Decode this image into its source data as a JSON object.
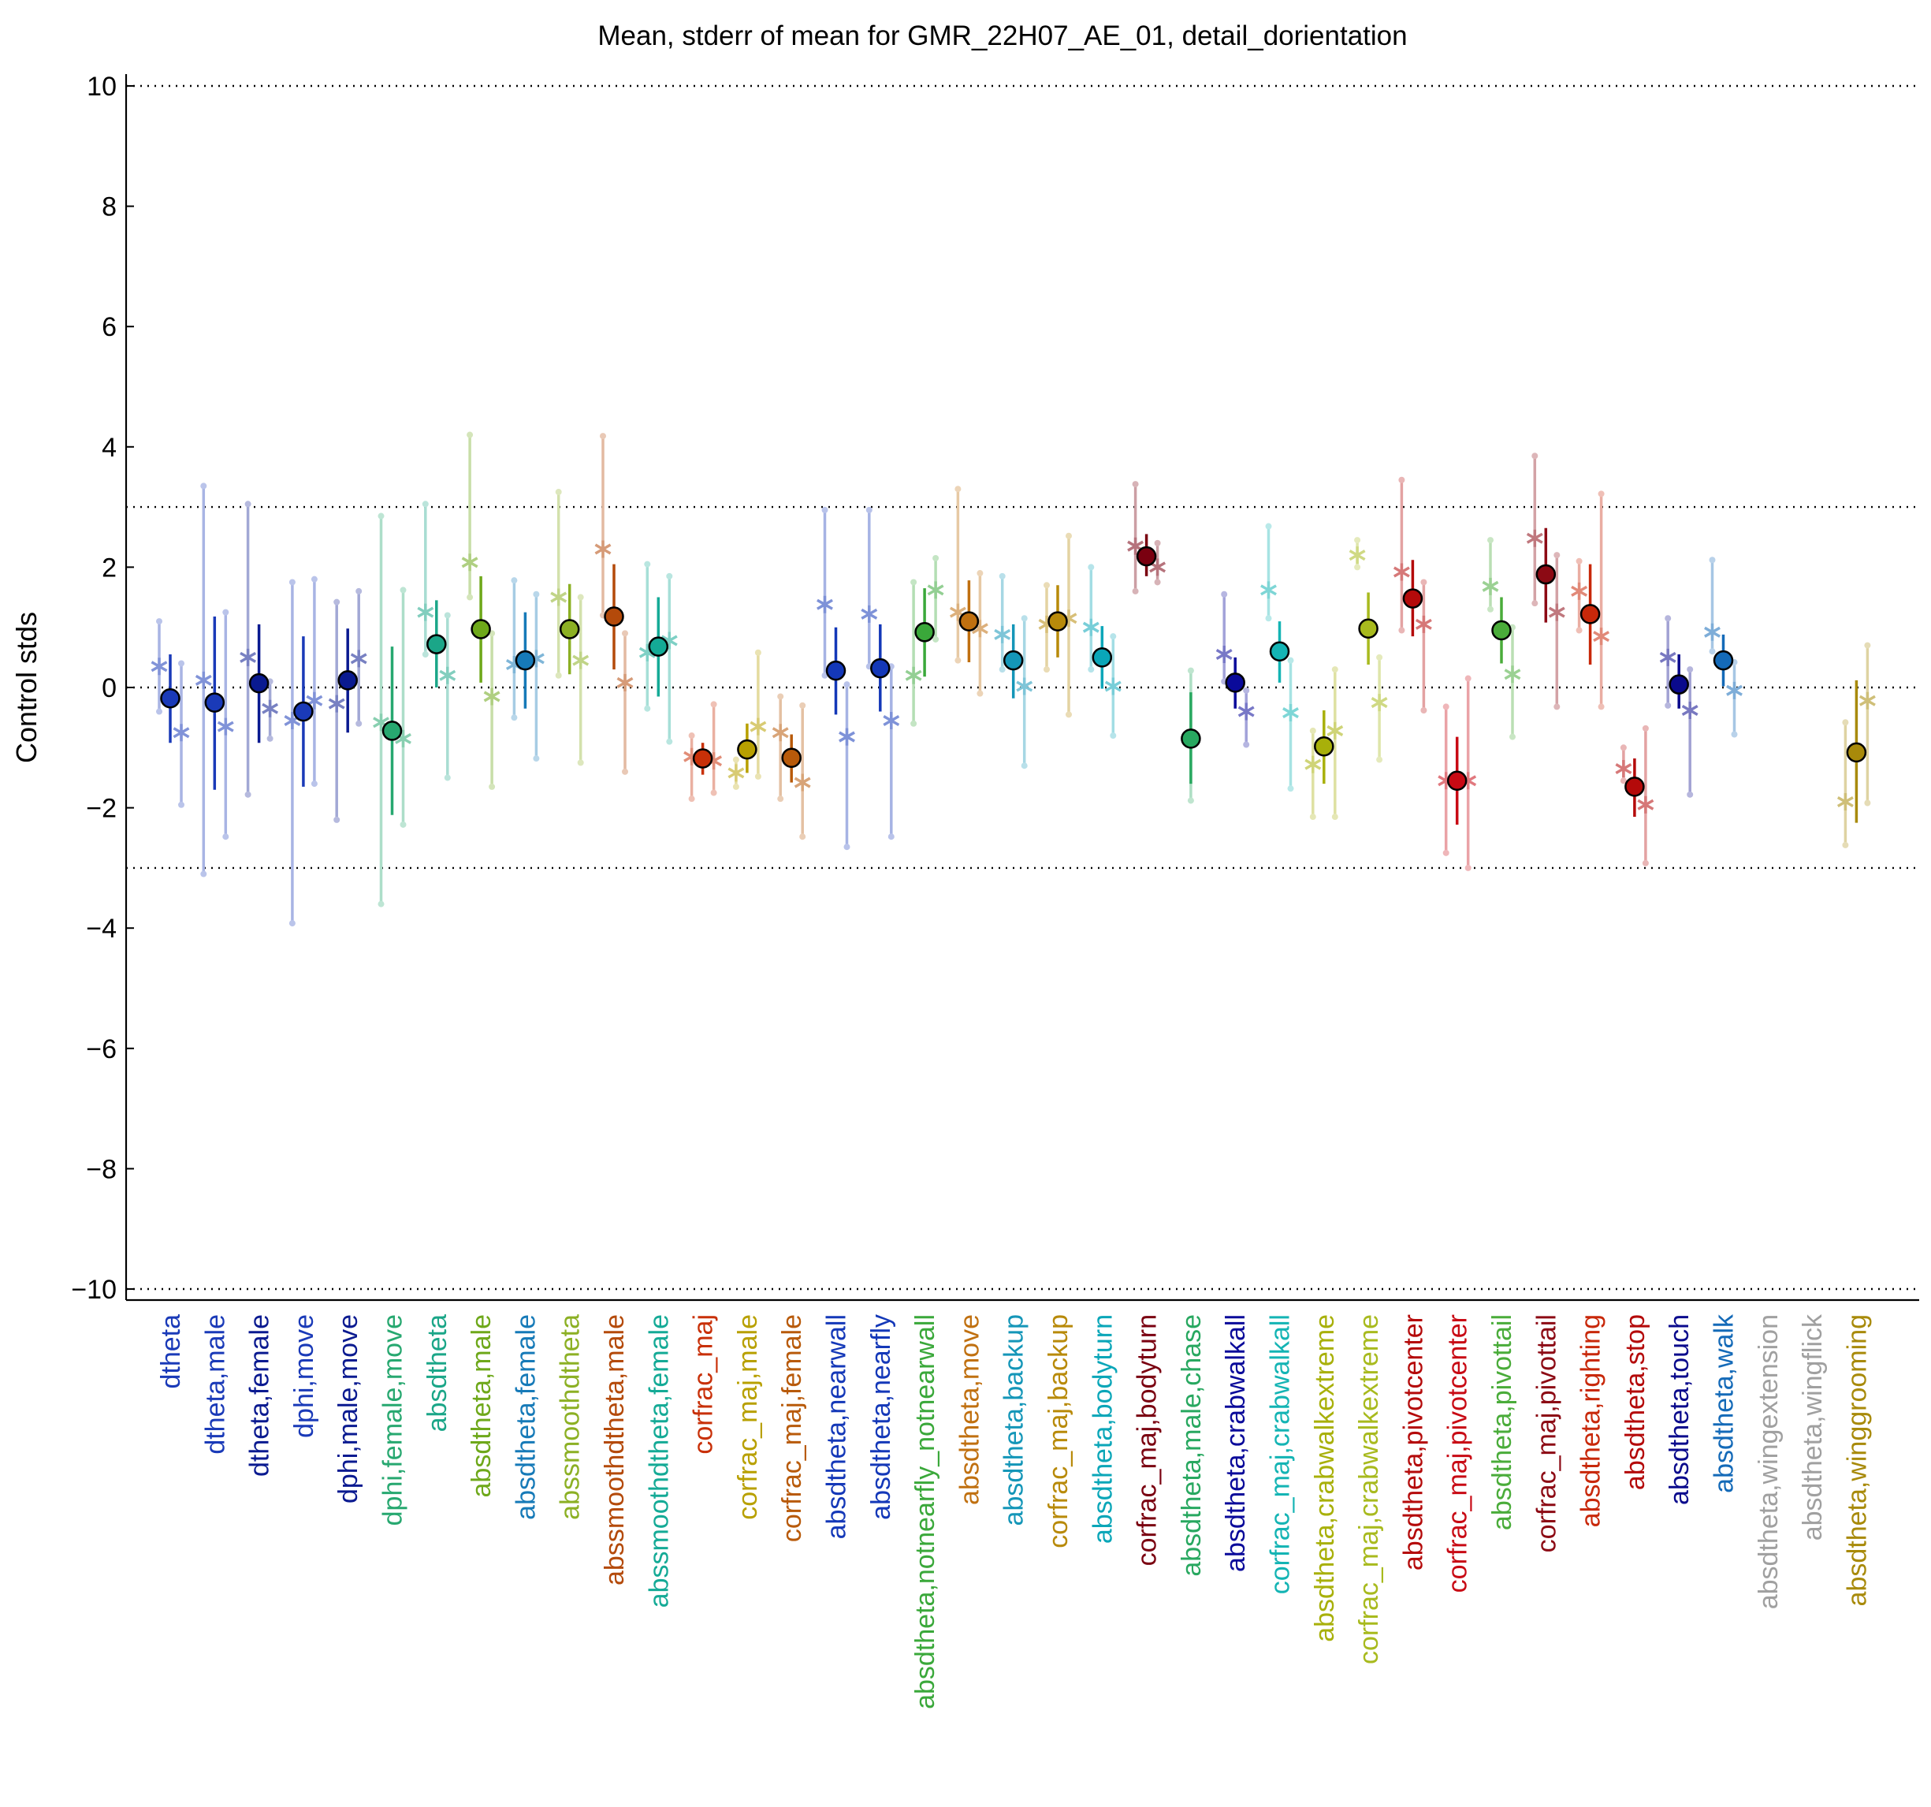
{
  "chart_data": {
    "type": "scatter",
    "title": "Mean, stderr of mean for GMR_22H07_AE_01, detail_dorientation",
    "xlabel": "",
    "ylabel": "Control stds",
    "ylim": [
      -10.2,
      10.2
    ],
    "yticks": [
      {
        "value": 10,
        "label": "10"
      },
      {
        "value": 8,
        "label": "8"
      },
      {
        "value": 6,
        "label": "6"
      },
      {
        "value": 4,
        "label": "4"
      },
      {
        "value": 2,
        "label": "2"
      },
      {
        "value": 0,
        "label": "0"
      },
      {
        "value": -2,
        "label": "−2"
      },
      {
        "value": -4,
        "label": "−4"
      },
      {
        "value": -6,
        "label": "−6"
      },
      {
        "value": -8,
        "label": "−8"
      },
      {
        "value": -10,
        "label": "−10"
      }
    ],
    "reference_lines": [
      10,
      3,
      0,
      -3,
      -10
    ],
    "grid": false,
    "legend": "none",
    "marker_legend": "filled circle = mean with stderr bar; stars = per-experiment values with faint range bars",
    "categories": [
      {
        "label": "dtheta",
        "color": "#1a3ab8",
        "mean": -0.18,
        "lo": -0.92,
        "hi": 0.55,
        "l": 0.35,
        "llo": -0.4,
        "lhi": 1.1,
        "r": -0.75,
        "rlo": -1.95,
        "rhi": 0.4
      },
      {
        "label": "dtheta,male",
        "color": "#1a3ab8",
        "mean": -0.25,
        "lo": -1.7,
        "hi": 1.18,
        "l": 0.12,
        "llo": -3.1,
        "lhi": 3.35,
        "r": -0.65,
        "rlo": -2.48,
        "rhi": 1.25
      },
      {
        "label": "dtheta,female",
        "color": "#0a1a90",
        "mean": 0.07,
        "lo": -0.92,
        "hi": 1.05,
        "l": 0.5,
        "llo": -1.78,
        "lhi": 3.05,
        "r": -0.35,
        "rlo": -0.85,
        "rhi": 0.1
      },
      {
        "label": "dphi,move",
        "color": "#1a3ab8",
        "mean": -0.4,
        "lo": -1.65,
        "hi": 0.85,
        "l": -0.55,
        "llo": -3.92,
        "lhi": 1.75,
        "r": -0.22,
        "rlo": -1.6,
        "rhi": 1.8
      },
      {
        "label": "dphi,male,move",
        "color": "#0a1a90",
        "mean": 0.12,
        "lo": -0.75,
        "hi": 0.98,
        "l": -0.27,
        "llo": -2.2,
        "lhi": 1.42,
        "r": 0.48,
        "rlo": -0.6,
        "rhi": 1.6
      },
      {
        "label": "dphi,female,move",
        "color": "#27a870",
        "mean": -0.72,
        "lo": -2.12,
        "hi": 0.68,
        "l": -0.58,
        "llo": -3.6,
        "lhi": 2.85,
        "r": -0.85,
        "rlo": -2.28,
        "rhi": 1.62
      },
      {
        "label": "absdtheta",
        "color": "#1ba688",
        "mean": 0.72,
        "lo": 0.0,
        "hi": 1.45,
        "l": 1.25,
        "llo": 0.55,
        "lhi": 3.05,
        "r": 0.2,
        "rlo": -1.5,
        "rhi": 1.2
      },
      {
        "label": "absdtheta,male",
        "color": "#6ea81a",
        "mean": 0.97,
        "lo": 0.08,
        "hi": 1.85,
        "l": 2.08,
        "llo": 1.5,
        "lhi": 4.2,
        "r": -0.15,
        "rlo": -1.65,
        "rhi": 0.9
      },
      {
        "label": "absdtheta,female",
        "color": "#167ab8",
        "mean": 0.45,
        "lo": -0.35,
        "hi": 1.25,
        "l": 0.38,
        "llo": -0.5,
        "lhi": 1.78,
        "r": 0.48,
        "rlo": -1.18,
        "rhi": 1.55
      },
      {
        "label": "abssmoothdtheta",
        "color": "#8cb024",
        "mean": 0.97,
        "lo": 0.22,
        "hi": 1.72,
        "l": 1.5,
        "llo": 0.2,
        "lhi": 3.25,
        "r": 0.45,
        "rlo": -1.25,
        "rhi": 1.5
      },
      {
        "label": "abssmoothdtheta,male",
        "color": "#b44a0a",
        "mean": 1.18,
        "lo": 0.3,
        "hi": 2.05,
        "l": 2.3,
        "llo": 1.2,
        "lhi": 4.18,
        "r": 0.08,
        "rlo": -1.4,
        "rhi": 0.9
      },
      {
        "label": "abssmoothdtheta,female",
        "color": "#14aa96",
        "mean": 0.68,
        "lo": -0.15,
        "hi": 1.5,
        "l": 0.58,
        "llo": -0.35,
        "lhi": 2.05,
        "r": 0.78,
        "rlo": -0.9,
        "rhi": 1.85
      },
      {
        "label": "corfrac_maj",
        "color": "#c83008",
        "mean": -1.18,
        "lo": -1.45,
        "hi": -0.92,
        "l": -1.15,
        "llo": -1.85,
        "lhi": -0.8,
        "r": -1.22,
        "rlo": -1.75,
        "rhi": -0.28
      },
      {
        "label": "corfrac_maj,male",
        "color": "#b8a000",
        "mean": -1.03,
        "lo": -1.42,
        "hi": -0.6,
        "l": -1.42,
        "llo": -1.65,
        "lhi": -1.2,
        "r": -0.65,
        "rlo": -1.48,
        "rhi": 0.58
      },
      {
        "label": "corfrac_maj,female",
        "color": "#b85a0a",
        "mean": -1.17,
        "lo": -1.58,
        "hi": -0.78,
        "l": -0.75,
        "llo": -1.85,
        "lhi": -0.15,
        "r": -1.58,
        "rlo": -2.48,
        "rhi": -0.3
      },
      {
        "label": "absdtheta,nearwall",
        "color": "#1438b8",
        "mean": 0.28,
        "lo": -0.45,
        "hi": 1.0,
        "l": 1.38,
        "llo": 0.2,
        "lhi": 2.95,
        "r": -0.82,
        "rlo": -2.65,
        "rhi": 0.05
      },
      {
        "label": "absdtheta,nearfly",
        "color": "#1438b8",
        "mean": 0.32,
        "lo": -0.4,
        "hi": 1.05,
        "l": 1.22,
        "llo": 0.35,
        "lhi": 2.95,
        "r": -0.55,
        "rlo": -2.48,
        "rhi": 0.35
      },
      {
        "label": "absdtheta,notnearfly_notnearwall",
        "color": "#3aa83a",
        "mean": 0.92,
        "lo": 0.18,
        "hi": 1.65,
        "l": 0.2,
        "llo": -0.6,
        "lhi": 1.75,
        "r": 1.62,
        "rlo": 0.8,
        "rhi": 2.15
      },
      {
        "label": "absdtheta,move",
        "color": "#c07010",
        "mean": 1.1,
        "lo": 0.42,
        "hi": 1.78,
        "l": 1.25,
        "llo": 0.45,
        "lhi": 3.3,
        "r": 0.98,
        "rlo": -0.1,
        "rhi": 1.9
      },
      {
        "label": "absdtheta,backup",
        "color": "#1496b8",
        "mean": 0.45,
        "lo": -0.18,
        "hi": 1.05,
        "l": 0.88,
        "llo": 0.3,
        "lhi": 1.85,
        "r": 0.02,
        "rlo": -1.3,
        "rhi": 1.15
      },
      {
        "label": "corfrac_maj,backup",
        "color": "#b88a0a",
        "mean": 1.1,
        "lo": 0.5,
        "hi": 1.7,
        "l": 1.05,
        "llo": 0.3,
        "lhi": 1.7,
        "r": 1.15,
        "rlo": -0.45,
        "rhi": 2.52
      },
      {
        "label": "absdtheta,bodyturn",
        "color": "#0aa6b8",
        "mean": 0.5,
        "lo": -0.02,
        "hi": 1.02,
        "l": 1.0,
        "llo": 0.3,
        "lhi": 2.0,
        "r": 0.02,
        "rlo": -0.8,
        "rhi": 0.85
      },
      {
        "label": "corfrac_maj,bodyturn",
        "color": "#7a0010",
        "mean": 2.18,
        "lo": 1.85,
        "hi": 2.55,
        "l": 2.35,
        "llo": 1.6,
        "lhi": 3.38,
        "r": 2.0,
        "rlo": 1.75,
        "rhi": 2.4
      },
      {
        "label": "absdtheta,male,chase",
        "color": "#28a860",
        "mean": -0.85,
        "lo": -1.6,
        "hi": -0.08,
        "l": null,
        "llo": -1.88,
        "lhi": 0.28,
        "r": null,
        "rlo": null,
        "rhi": null
      },
      {
        "label": "absdtheta,crabwalkall",
        "color": "#0a0a9a",
        "mean": 0.08,
        "lo": -0.35,
        "hi": 0.5,
        "l": 0.55,
        "llo": 0.1,
        "lhi": 1.55,
        "r": -0.4,
        "rlo": -0.95,
        "rhi": -0.05
      },
      {
        "label": "corfrac_maj,crabwalkall",
        "color": "#14b4b4",
        "mean": 0.6,
        "lo": 0.08,
        "hi": 1.1,
        "l": 1.62,
        "llo": 1.15,
        "lhi": 2.68,
        "r": -0.42,
        "rlo": -1.68,
        "rhi": 0.45
      },
      {
        "label": "absdtheta,crabwalkextreme",
        "color": "#a8b00a",
        "mean": -0.98,
        "lo": -1.6,
        "hi": -0.38,
        "l": -1.28,
        "llo": -2.15,
        "lhi": -0.72,
        "r": -0.72,
        "rlo": -2.15,
        "rhi": 0.3
      },
      {
        "label": "corfrac_maj,crabwalkextreme",
        "color": "#a8ba1e",
        "mean": 0.98,
        "lo": 0.38,
        "hi": 1.58,
        "l": 2.2,
        "llo": 2.0,
        "lhi": 2.45,
        "r": -0.25,
        "rlo": -1.2,
        "rhi": 0.5
      },
      {
        "label": "absdtheta,pivotcenter",
        "color": "#b40a0a",
        "mean": 1.48,
        "lo": 0.85,
        "hi": 2.12,
        "l": 1.92,
        "llo": 0.95,
        "lhi": 3.45,
        "r": 1.05,
        "rlo": -0.38,
        "rhi": 1.75
      },
      {
        "label": "corfrac_maj,pivotcenter",
        "color": "#c80a14",
        "mean": -1.55,
        "lo": -2.28,
        "hi": -0.82,
        "l": -1.55,
        "llo": -2.75,
        "lhi": -0.32,
        "r": -1.55,
        "rlo": -3.0,
        "rhi": 0.15
      },
      {
        "label": "absdtheta,pivottail",
        "color": "#4aac3a",
        "mean": 0.95,
        "lo": 0.4,
        "hi": 1.5,
        "l": 1.68,
        "llo": 1.3,
        "lhi": 2.45,
        "r": 0.22,
        "rlo": -0.82,
        "rhi": 1.0
      },
      {
        "label": "corfrac_maj,pivottail",
        "color": "#8c0a14",
        "mean": 1.88,
        "lo": 1.08,
        "hi": 2.65,
        "l": 2.48,
        "llo": 1.4,
        "lhi": 3.85,
        "r": 1.25,
        "rlo": -0.32,
        "rhi": 2.2
      },
      {
        "label": "absdtheta,righting",
        "color": "#c8280a",
        "mean": 1.22,
        "lo": 0.38,
        "hi": 2.05,
        "l": 1.6,
        "llo": 0.95,
        "lhi": 2.1,
        "r": 0.85,
        "rlo": -0.32,
        "rhi": 3.22
      },
      {
        "label": "absdtheta,stop",
        "color": "#b40a0a",
        "mean": -1.65,
        "lo": -2.15,
        "hi": -1.18,
        "l": -1.35,
        "llo": -1.55,
        "lhi": -1.0,
        "r": -1.95,
        "rlo": -2.92,
        "rhi": -0.68
      },
      {
        "label": "absdtheta,touch",
        "color": "#0a0a8c",
        "mean": 0.05,
        "lo": -0.35,
        "hi": 0.55,
        "l": 0.5,
        "llo": -0.3,
        "lhi": 1.15,
        "r": -0.38,
        "rlo": -1.78,
        "rhi": 0.3
      },
      {
        "label": "absdtheta,walk",
        "color": "#146ab8",
        "mean": 0.45,
        "lo": 0.02,
        "hi": 0.88,
        "l": 0.92,
        "llo": 0.6,
        "lhi": 2.12,
        "r": -0.05,
        "rlo": -0.78,
        "rhi": 0.42
      },
      {
        "label": "absdtheta,wingextension",
        "color": "#a0a0a0",
        "mean": null,
        "lo": null,
        "hi": null,
        "l": null,
        "llo": null,
        "lhi": null,
        "r": null,
        "rlo": null,
        "rhi": null
      },
      {
        "label": "absdtheta,wingflick",
        "color": "#a0a0a0",
        "mean": null,
        "lo": null,
        "hi": null,
        "l": null,
        "llo": null,
        "lhi": null,
        "r": null,
        "rlo": null,
        "rhi": null
      },
      {
        "label": "absdtheta,winggrooming",
        "color": "#a88a0a",
        "mean": -1.08,
        "lo": -2.25,
        "hi": 0.12,
        "l": -1.9,
        "llo": -2.62,
        "lhi": -0.58,
        "r": -0.22,
        "rlo": -1.92,
        "rhi": 0.7
      }
    ]
  }
}
